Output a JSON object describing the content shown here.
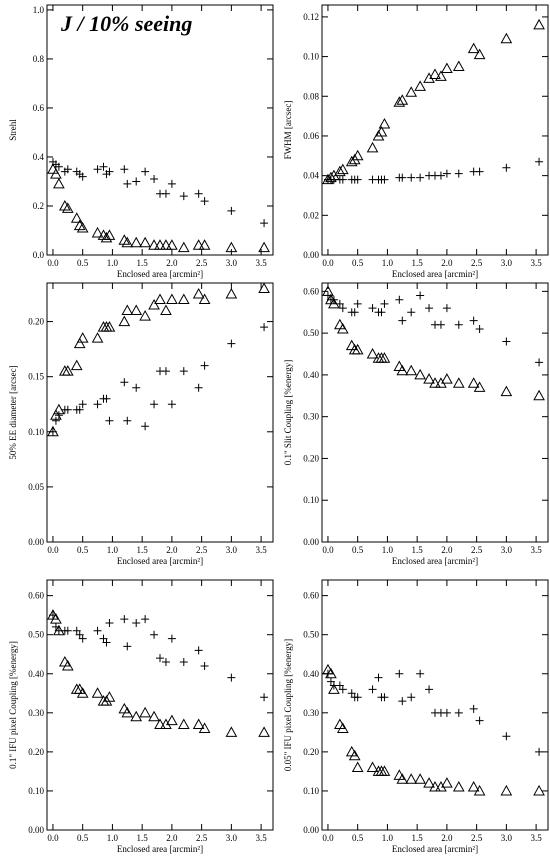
{
  "chart_data": [
    {
      "type": "scatter",
      "title": "J / 10% seeing",
      "ylabel": "Strehl",
      "xlabel": "Enclosed area [arcmin²]",
      "xlim": [
        -0.1,
        3.7
      ],
      "ylim": [
        0,
        1.02
      ],
      "xticks": [
        {
          "value": 0,
          "label": "0.0"
        },
        0.5,
        {
          "value": 1,
          "label": "1.0"
        },
        1.5,
        {
          "value": 2,
          "label": "2.0"
        },
        2.5,
        {
          "value": 3,
          "label": "3.0"
        },
        3.5
      ],
      "yticks": [
        {
          "value": 0,
          "label": "0.0"
        },
        0.2,
        0.4,
        0.6,
        0.8,
        {
          "value": 1,
          "label": "1.0"
        }
      ],
      "series": [
        {
          "marker": "plus",
          "color": "#000000",
          "x": [
            0.0,
            0.05,
            0.1,
            0.2,
            0.25,
            0.4,
            0.45,
            0.5,
            0.75,
            0.85,
            0.9,
            0.95,
            1.2,
            1.25,
            1.4,
            1.55,
            1.7,
            1.8,
            1.9,
            2.0,
            2.2,
            2.45,
            2.55,
            3.0,
            3.55
          ],
          "values": [
            0.38,
            0.37,
            0.36,
            0.34,
            0.35,
            0.34,
            0.33,
            0.32,
            0.35,
            0.36,
            0.33,
            0.34,
            0.35,
            0.29,
            0.3,
            0.34,
            0.31,
            0.25,
            0.25,
            0.29,
            0.24,
            0.25,
            0.22,
            0.18,
            0.13
          ]
        },
        {
          "marker": "triangle",
          "color": "#000000",
          "x": [
            0.0,
            0.05,
            0.1,
            0.2,
            0.25,
            0.4,
            0.45,
            0.5,
            0.75,
            0.85,
            0.9,
            0.95,
            1.2,
            1.25,
            1.4,
            1.55,
            1.7,
            1.8,
            1.9,
            2.0,
            2.2,
            2.45,
            2.55,
            3.0,
            3.55
          ],
          "values": [
            0.35,
            0.33,
            0.29,
            0.2,
            0.19,
            0.15,
            0.12,
            0.11,
            0.09,
            0.08,
            0.07,
            0.08,
            0.06,
            0.05,
            0.05,
            0.05,
            0.04,
            0.04,
            0.04,
            0.04,
            0.03,
            0.04,
            0.04,
            0.03,
            0.03
          ]
        }
      ]
    },
    {
      "type": "scatter",
      "ylabel": "FWHM [arcsec]",
      "xlabel": "Enclosed area [arcmin²]",
      "xlim": [
        -0.1,
        3.7
      ],
      "ylim": [
        0,
        0.126
      ],
      "xticks": [
        {
          "value": 0,
          "label": "0.0"
        },
        0.5,
        {
          "value": 1,
          "label": "1.0"
        },
        1.5,
        {
          "value": 2,
          "label": "2.0"
        },
        2.5,
        {
          "value": 3,
          "label": "3.0"
        },
        3.5
      ],
      "yticks": [
        {
          "value": 0,
          "label": "0.00"
        },
        0.02,
        0.04,
        0.06,
        0.08,
        {
          "value": 0.1,
          "label": "0.10"
        },
        0.12
      ],
      "series": [
        {
          "marker": "plus",
          "color": "#000000",
          "x": [
            0.0,
            0.05,
            0.1,
            0.2,
            0.25,
            0.4,
            0.45,
            0.5,
            0.75,
            0.85,
            0.9,
            0.95,
            1.2,
            1.25,
            1.4,
            1.55,
            1.7,
            1.8,
            1.9,
            2.0,
            2.2,
            2.45,
            2.55,
            3.0,
            3.55
          ],
          "values": [
            0.038,
            0.038,
            0.038,
            0.038,
            0.038,
            0.038,
            0.038,
            0.038,
            0.038,
            0.038,
            0.038,
            0.038,
            0.039,
            0.039,
            0.039,
            0.039,
            0.04,
            0.04,
            0.04,
            0.041,
            0.041,
            0.042,
            0.042,
            0.044,
            0.047
          ]
        },
        {
          "marker": "triangle",
          "color": "#000000",
          "x": [
            0.0,
            0.05,
            0.1,
            0.2,
            0.25,
            0.4,
            0.45,
            0.5,
            0.75,
            0.85,
            0.9,
            0.95,
            1.2,
            1.25,
            1.4,
            1.55,
            1.7,
            1.8,
            1.9,
            2.0,
            2.2,
            2.45,
            2.55,
            3.0,
            3.55
          ],
          "values": [
            0.038,
            0.039,
            0.04,
            0.042,
            0.043,
            0.047,
            0.048,
            0.05,
            0.054,
            0.06,
            0.062,
            0.066,
            0.077,
            0.078,
            0.082,
            0.085,
            0.089,
            0.091,
            0.09,
            0.094,
            0.095,
            0.104,
            0.101,
            0.109,
            0.116
          ]
        }
      ]
    },
    {
      "type": "scatter",
      "ylabel": "50% EE diameter [arcsec]",
      "xlabel": "Enclosed area [arcmin²]",
      "xlim": [
        -0.1,
        3.7
      ],
      "ylim": [
        0,
        0.235
      ],
      "xticks": [
        {
          "value": 0,
          "label": "0.0"
        },
        0.5,
        {
          "value": 1,
          "label": "1.0"
        },
        1.5,
        {
          "value": 2,
          "label": "2.0"
        },
        2.5,
        {
          "value": 3,
          "label": "3.0"
        },
        3.5
      ],
      "yticks": [
        {
          "value": 0,
          "label": "0.00"
        },
        0.05,
        {
          "value": 0.1,
          "label": "0.10"
        },
        0.15,
        {
          "value": 0.2,
          "label": "0.20"
        }
      ],
      "series": [
        {
          "marker": "plus",
          "color": "#000000",
          "x": [
            0.0,
            0.05,
            0.1,
            0.2,
            0.25,
            0.4,
            0.45,
            0.5,
            0.75,
            0.85,
            0.9,
            0.95,
            1.2,
            1.25,
            1.4,
            1.55,
            1.7,
            1.8,
            1.9,
            2.0,
            2.2,
            2.45,
            2.55,
            3.0,
            3.55
          ],
          "values": [
            0.1,
            0.11,
            0.115,
            0.12,
            0.12,
            0.12,
            0.12,
            0.125,
            0.125,
            0.13,
            0.13,
            0.11,
            0.145,
            0.11,
            0.14,
            0.105,
            0.125,
            0.155,
            0.155,
            0.125,
            0.155,
            0.14,
            0.16,
            0.18,
            0.195
          ]
        },
        {
          "marker": "triangle",
          "color": "#000000",
          "x": [
            0.0,
            0.05,
            0.1,
            0.2,
            0.25,
            0.4,
            0.45,
            0.5,
            0.75,
            0.85,
            0.9,
            0.95,
            1.2,
            1.25,
            1.4,
            1.55,
            1.7,
            1.8,
            1.9,
            2.0,
            2.2,
            2.45,
            2.55,
            3.0,
            3.55
          ],
          "values": [
            0.1,
            0.115,
            0.12,
            0.155,
            0.155,
            0.16,
            0.18,
            0.185,
            0.185,
            0.195,
            0.195,
            0.195,
            0.2,
            0.21,
            0.21,
            0.205,
            0.215,
            0.22,
            0.21,
            0.22,
            0.22,
            0.225,
            0.22,
            0.225,
            0.23
          ]
        }
      ]
    },
    {
      "type": "scatter",
      "ylabel": "0.1\" Slit Coupling [%energy]",
      "xlabel": "Enclosed area [arcmin²]",
      "xlim": [
        -0.1,
        3.7
      ],
      "ylim": [
        0,
        0.62
      ],
      "xticks": [
        {
          "value": 0,
          "label": "0.0"
        },
        0.5,
        {
          "value": 1,
          "label": "1.0"
        },
        1.5,
        {
          "value": 2,
          "label": "2.0"
        },
        2.5,
        {
          "value": 3,
          "label": "3.0"
        },
        3.5
      ],
      "yticks": [
        {
          "value": 0,
          "label": "0.00"
        },
        {
          "value": 0.1,
          "label": "0.10"
        },
        {
          "value": 0.2,
          "label": "0.20"
        },
        {
          "value": 0.3,
          "label": "0.30"
        },
        {
          "value": 0.4,
          "label": "0.40"
        },
        {
          "value": 0.5,
          "label": "0.50"
        },
        {
          "value": 0.6,
          "label": "0.60"
        }
      ],
      "series": [
        {
          "marker": "plus",
          "color": "#000000",
          "x": [
            0.0,
            0.05,
            0.1,
            0.2,
            0.25,
            0.4,
            0.45,
            0.5,
            0.75,
            0.85,
            0.9,
            0.95,
            1.2,
            1.25,
            1.4,
            1.55,
            1.7,
            1.8,
            1.9,
            2.0,
            2.2,
            2.45,
            2.55,
            3.0,
            3.55
          ],
          "values": [
            0.59,
            0.58,
            0.58,
            0.57,
            0.56,
            0.55,
            0.55,
            0.57,
            0.56,
            0.55,
            0.55,
            0.57,
            0.58,
            0.53,
            0.55,
            0.59,
            0.56,
            0.52,
            0.52,
            0.56,
            0.52,
            0.53,
            0.51,
            0.48,
            0.43
          ]
        },
        {
          "marker": "triangle",
          "color": "#000000",
          "x": [
            0.0,
            0.05,
            0.1,
            0.2,
            0.25,
            0.4,
            0.45,
            0.5,
            0.75,
            0.85,
            0.9,
            0.95,
            1.2,
            1.25,
            1.4,
            1.55,
            1.7,
            1.8,
            1.9,
            2.0,
            2.2,
            2.45,
            2.55,
            3.0,
            3.55
          ],
          "values": [
            0.6,
            0.58,
            0.57,
            0.52,
            0.51,
            0.47,
            0.46,
            0.46,
            0.45,
            0.44,
            0.44,
            0.44,
            0.42,
            0.41,
            0.41,
            0.4,
            0.39,
            0.38,
            0.38,
            0.39,
            0.38,
            0.38,
            0.37,
            0.36,
            0.35
          ]
        }
      ]
    },
    {
      "type": "scatter",
      "ylabel": "0.1\" IFU pixel Coupling [%energy]",
      "xlabel": "Enclosed area [arcmin²]",
      "xlim": [
        -0.1,
        3.7
      ],
      "ylim": [
        0,
        0.64
      ],
      "xticks": [
        {
          "value": 0,
          "label": "0.0"
        },
        0.5,
        {
          "value": 1,
          "label": "1.0"
        },
        1.5,
        {
          "value": 2,
          "label": "2.0"
        },
        2.5,
        {
          "value": 3,
          "label": "3.0"
        },
        3.5
      ],
      "yticks": [
        {
          "value": 0,
          "label": "0.00"
        },
        {
          "value": 0.1,
          "label": "0.10"
        },
        {
          "value": 0.2,
          "label": "0.20"
        },
        {
          "value": 0.3,
          "label": "0.30"
        },
        {
          "value": 0.4,
          "label": "0.40"
        },
        {
          "value": 0.5,
          "label": "0.50"
        },
        {
          "value": 0.6,
          "label": "0.60"
        }
      ],
      "series": [
        {
          "marker": "plus",
          "color": "#000000",
          "x": [
            0.0,
            0.05,
            0.1,
            0.2,
            0.25,
            0.4,
            0.45,
            0.5,
            0.75,
            0.85,
            0.9,
            0.95,
            1.2,
            1.25,
            1.4,
            1.55,
            1.7,
            1.8,
            1.9,
            2.0,
            2.2,
            2.45,
            2.55,
            3.0,
            3.55
          ],
          "values": [
            0.55,
            0.52,
            0.51,
            0.51,
            0.51,
            0.51,
            0.5,
            0.49,
            0.51,
            0.49,
            0.48,
            0.53,
            0.54,
            0.47,
            0.53,
            0.54,
            0.5,
            0.44,
            0.43,
            0.49,
            0.43,
            0.46,
            0.42,
            0.39,
            0.34
          ]
        },
        {
          "marker": "triangle",
          "color": "#000000",
          "x": [
            0.0,
            0.05,
            0.1,
            0.2,
            0.25,
            0.4,
            0.45,
            0.5,
            0.75,
            0.85,
            0.9,
            0.95,
            1.2,
            1.25,
            1.4,
            1.55,
            1.7,
            1.8,
            1.9,
            2.0,
            2.2,
            2.45,
            2.55,
            3.0,
            3.55
          ],
          "values": [
            0.55,
            0.54,
            0.51,
            0.43,
            0.42,
            0.36,
            0.36,
            0.35,
            0.35,
            0.33,
            0.33,
            0.34,
            0.31,
            0.3,
            0.29,
            0.3,
            0.29,
            0.27,
            0.27,
            0.28,
            0.27,
            0.27,
            0.26,
            0.25,
            0.25
          ]
        }
      ]
    },
    {
      "type": "scatter",
      "ylabel": "0.05\" IFU pixel Coupling [%energy]",
      "xlabel": "Enclosed area [arcmin²]",
      "xlim": [
        -0.1,
        3.7
      ],
      "ylim": [
        0,
        0.64
      ],
      "xticks": [
        {
          "value": 0,
          "label": "0.0"
        },
        0.5,
        {
          "value": 1,
          "label": "1.0"
        },
        1.5,
        {
          "value": 2,
          "label": "2.0"
        },
        2.5,
        {
          "value": 3,
          "label": "3.0"
        },
        3.5
      ],
      "yticks": [
        {
          "value": 0,
          "label": "0.00"
        },
        {
          "value": 0.1,
          "label": "0.10"
        },
        {
          "value": 0.2,
          "label": "0.20"
        },
        {
          "value": 0.3,
          "label": "0.30"
        },
        {
          "value": 0.4,
          "label": "0.40"
        },
        {
          "value": 0.5,
          "label": "0.50"
        },
        {
          "value": 0.6,
          "label": "0.60"
        }
      ],
      "series": [
        {
          "marker": "plus",
          "color": "#000000",
          "x": [
            0.0,
            0.05,
            0.1,
            0.2,
            0.25,
            0.4,
            0.45,
            0.5,
            0.75,
            0.85,
            0.9,
            0.95,
            1.2,
            1.25,
            1.4,
            1.55,
            1.7,
            1.8,
            1.9,
            2.0,
            2.2,
            2.45,
            2.55,
            3.0,
            3.55
          ],
          "values": [
            0.4,
            0.38,
            0.37,
            0.37,
            0.36,
            0.35,
            0.34,
            0.34,
            0.36,
            0.39,
            0.34,
            0.34,
            0.4,
            0.33,
            0.34,
            0.4,
            0.36,
            0.3,
            0.3,
            0.3,
            0.3,
            0.31,
            0.28,
            0.24,
            0.2
          ]
        },
        {
          "marker": "triangle",
          "color": "#000000",
          "x": [
            0.0,
            0.05,
            0.1,
            0.2,
            0.25,
            0.4,
            0.45,
            0.5,
            0.75,
            0.85,
            0.9,
            0.95,
            1.2,
            1.25,
            1.4,
            1.55,
            1.7,
            1.8,
            1.9,
            2.0,
            2.2,
            2.45,
            2.55,
            3.0,
            3.55
          ],
          "values": [
            0.41,
            0.4,
            0.36,
            0.27,
            0.26,
            0.2,
            0.19,
            0.16,
            0.16,
            0.15,
            0.15,
            0.15,
            0.14,
            0.13,
            0.13,
            0.13,
            0.12,
            0.11,
            0.11,
            0.12,
            0.11,
            0.11,
            0.1,
            0.1,
            0.1
          ]
        }
      ]
    }
  ]
}
